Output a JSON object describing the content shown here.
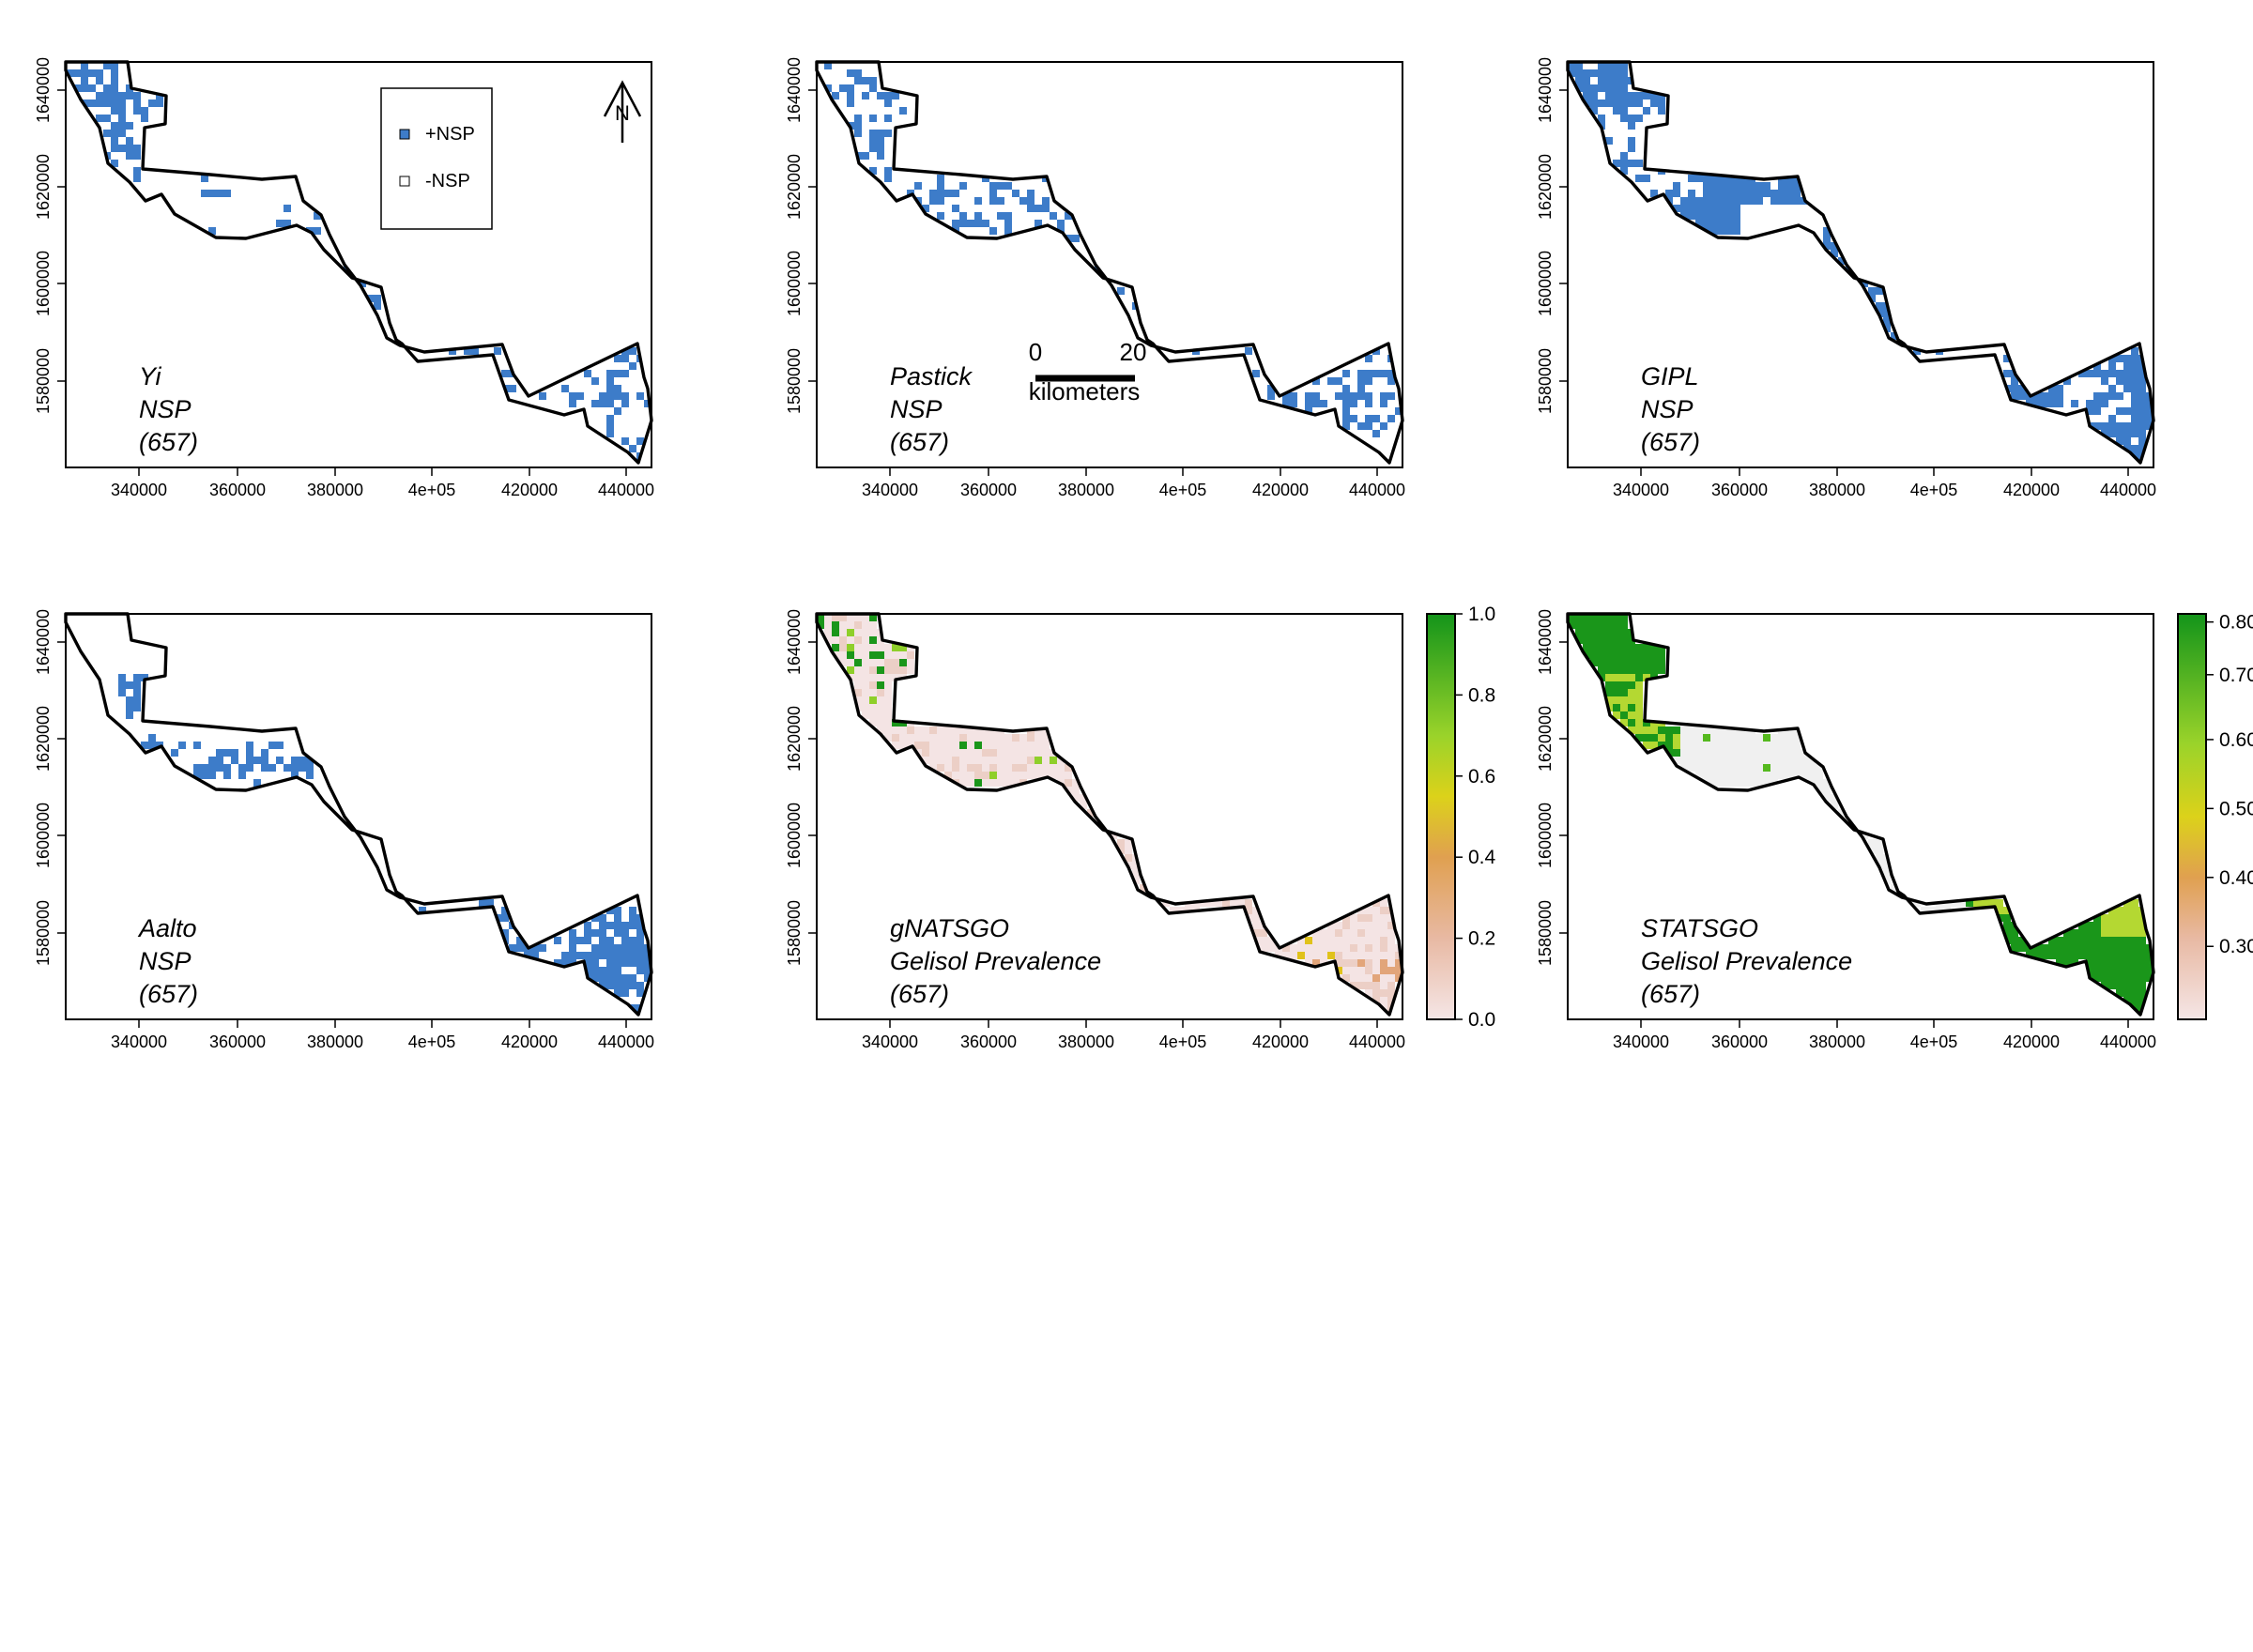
{
  "figure": {
    "x_ticks": [
      "340000",
      "360000",
      "380000",
      "4e+05",
      "420000",
      "440000"
    ],
    "y_ticks": [
      "1580000",
      "1600000",
      "1620000",
      "1640000"
    ],
    "panels": [
      {
        "id": "yi",
        "label_lines": [
          "Yi",
          "NSP",
          "(657)"
        ],
        "kind": "binary"
      },
      {
        "id": "pastick",
        "label_lines": [
          "Pastick",
          "NSP",
          "(657)"
        ],
        "kind": "binary"
      },
      {
        "id": "gipl",
        "label_lines": [
          "GIPL",
          "NSP",
          "(657)"
        ],
        "kind": "binary"
      },
      {
        "id": "aalto",
        "label_lines": [
          "Aalto",
          "NSP",
          "(657)"
        ],
        "kind": "binary"
      },
      {
        "id": "gnatsgo",
        "label_lines": [
          "gNATSGO",
          "Gelisol Prevalence",
          "(657)"
        ],
        "kind": "continuous"
      },
      {
        "id": "statsgo",
        "label_lines": [
          "STATSGO",
          "Gelisol Prevalence",
          "(657)"
        ],
        "kind": "continuous"
      }
    ],
    "legend": {
      "items": [
        "+NSP",
        "-NSP"
      ]
    },
    "north_arrow_label": "N",
    "scale_bar": {
      "start": "0",
      "end": "20",
      "unit": "kilometers"
    },
    "colorbar_gnatsgo": {
      "ticks": [
        "0.0",
        "0.2",
        "0.4",
        "0.6",
        "0.8",
        "1.0"
      ]
    },
    "colorbar_statsgo": {
      "ticks": [
        "0.30",
        "0.40",
        "0.50",
        "0.60",
        "0.70",
        "0.80"
      ]
    },
    "colors": {
      "nsp_blue": "#3d7cc9",
      "outline": "#000000",
      "ramp": [
        "#f2dcdc",
        "#e2a57a",
        "#e0c21a",
        "#cfe02a",
        "#7ecb26",
        "#1f9e1f"
      ]
    }
  }
}
